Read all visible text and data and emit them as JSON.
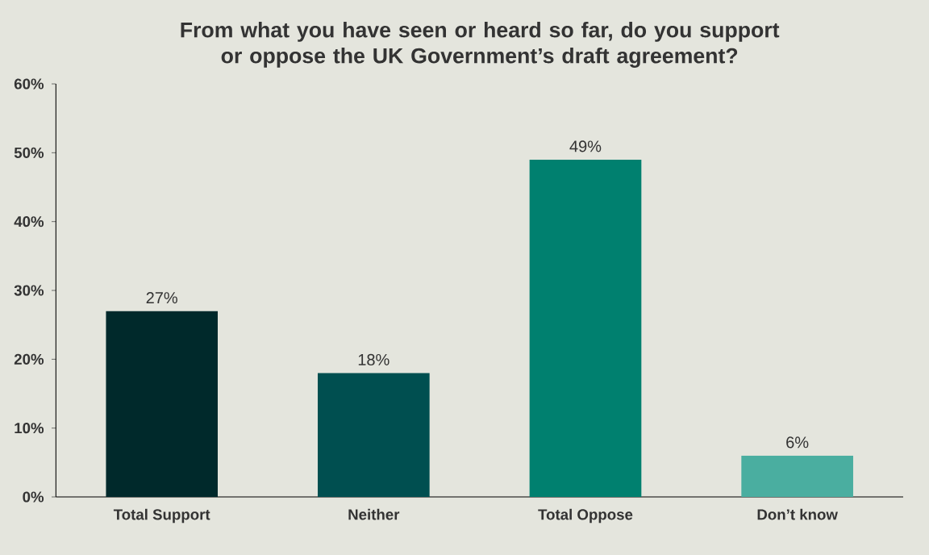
{
  "chart_data": {
    "type": "bar",
    "title": "From what you have seen or heard so far, do you support or oppose the UK Government’s draft agreement?",
    "categories": [
      "Total Support",
      "Neither",
      "Total Oppose",
      "Don’t know"
    ],
    "values": [
      27,
      18,
      49,
      6
    ],
    "colors": [
      "#00292b",
      "#004f50",
      "#00806f",
      "#4aaea0"
    ],
    "value_labels": [
      "27%",
      "18%",
      "49%",
      "6%"
    ],
    "ylim": [
      0,
      60
    ],
    "yticks": [
      {
        "value": 0,
        "label": "0%"
      },
      {
        "value": 10,
        "label": "10%"
      },
      {
        "value": 20,
        "label": "20%"
      },
      {
        "value": 30,
        "label": "30%"
      },
      {
        "value": 40,
        "label": "40%"
      },
      {
        "value": 50,
        "label": "50%"
      },
      {
        "value": 60,
        "label": "60%"
      }
    ],
    "grid": false
  }
}
